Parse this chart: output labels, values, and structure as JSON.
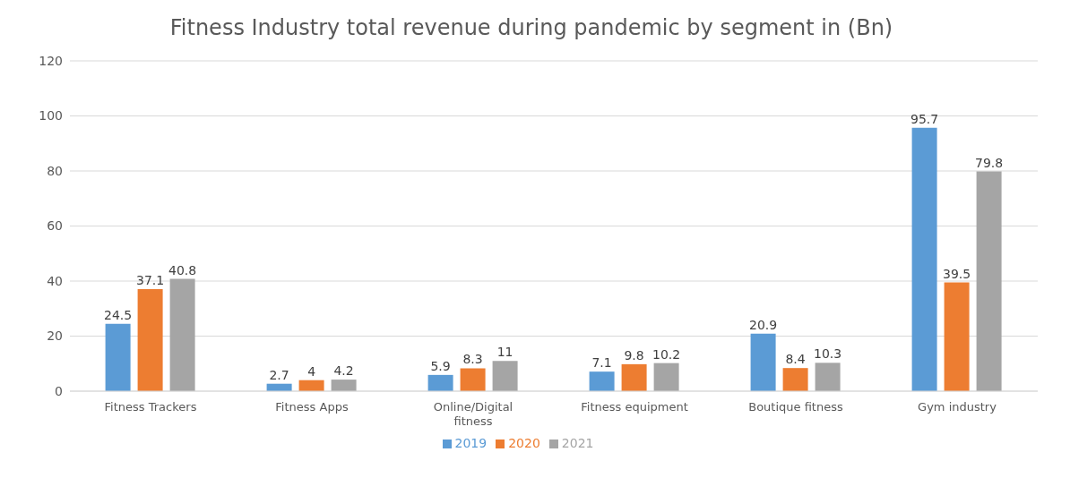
{
  "chart_data": {
    "type": "bar",
    "title": "Fitness Industry total revenue during pandemic by segment in (Bn)",
    "categories": [
      "Fitness Trackers",
      "Fitness Apps",
      "Online/Digital fitness",
      "Fitness equipment",
      "Boutique fitness",
      "Gym industry"
    ],
    "series": [
      {
        "name": "2019",
        "color": "#5b9bd5",
        "values": [
          24.5,
          2.7,
          5.9,
          7.1,
          20.9,
          95.7
        ]
      },
      {
        "name": "2020",
        "color": "#ed7d31",
        "values": [
          37.1,
          4,
          8.3,
          9.8,
          8.4,
          39.5
        ]
      },
      {
        "name": "2021",
        "color": "#a5a5a5",
        "values": [
          40.8,
          4.2,
          11,
          10.2,
          10.3,
          79.8
        ]
      }
    ],
    "ylim": [
      0,
      120
    ],
    "yticks": [
      0,
      20,
      40,
      60,
      80,
      100,
      120
    ],
    "grid": "y",
    "legend": "bottom",
    "data_labels": true
  }
}
